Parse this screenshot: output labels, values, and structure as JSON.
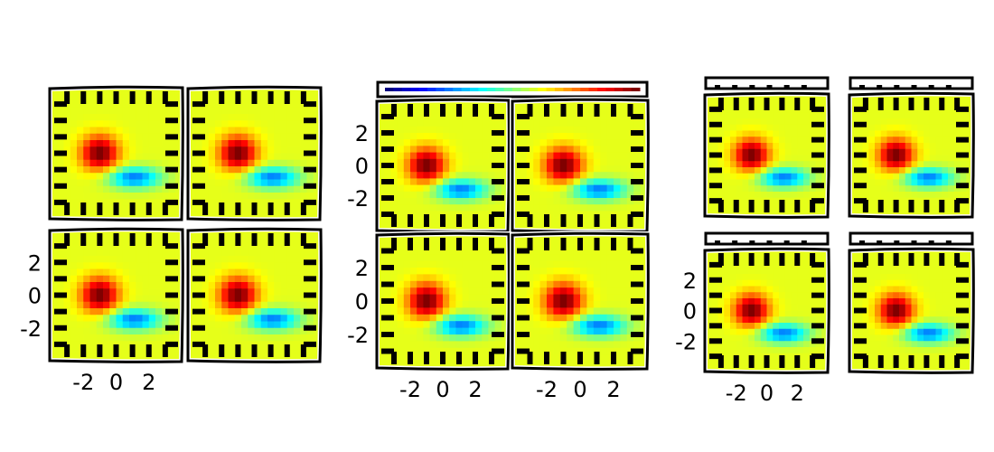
{
  "chart_data": [
    {
      "type": "heatmap",
      "panels": 4,
      "layout": "2x2",
      "colorbar": false,
      "xticks": [
        "-2",
        "0",
        "2"
      ],
      "yticks": [
        "2",
        "0",
        "-2"
      ],
      "xrange": [
        -4,
        4
      ],
      "yrange": [
        -4,
        4
      ],
      "field": "positive lobe at (-1, 0), negative lobe at (1, -1.5)"
    },
    {
      "type": "heatmap",
      "panels": 4,
      "layout": "2x2",
      "colorbar": true,
      "colorbar_position": "top",
      "colormap": "jet",
      "xticks": [
        "-2",
        "0",
        "2"
      ],
      "yticks": [
        "2",
        "0",
        "-2"
      ],
      "xrange": [
        -4,
        4
      ],
      "yrange": [
        -4,
        4
      ],
      "field": "positive lobe at (-1, 0), negative lobe at (1, -1.5)"
    },
    {
      "type": "heatmap",
      "panels": 4,
      "layout": "2x2",
      "colorbar": true,
      "colorbar_position": "top of each panel",
      "xticks": [
        "-2",
        "0",
        "2"
      ],
      "yticks": [
        "2",
        "0",
        "-2"
      ],
      "xrange": [
        -4,
        4
      ],
      "yrange": [
        -4,
        4
      ],
      "field": "positive lobe at (-1, 0), negative lobe at (1, -1.5)"
    }
  ]
}
